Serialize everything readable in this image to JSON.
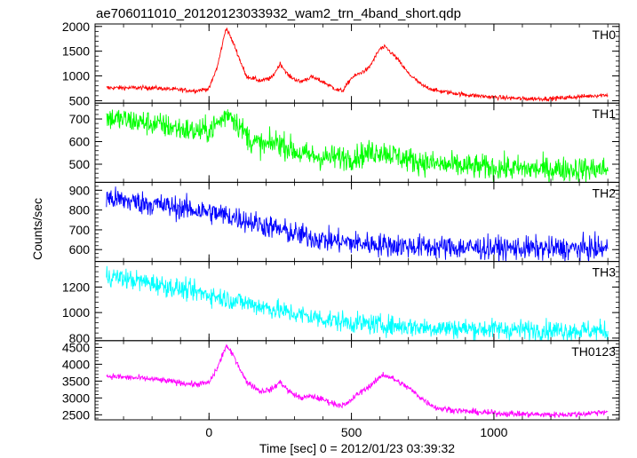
{
  "chart_data": {
    "type": "line",
    "title": "ae706011010_20120123033932_wam2_trn_4band_short.qdp",
    "xlabel": "Time [sec] 0 = 2012/01/23 03:39:32",
    "ylabel": "Counts/sec",
    "xlim": [
      -400,
      1440
    ],
    "xticks": [
      0,
      500,
      1000
    ],
    "panels": [
      {
        "name": "TH0",
        "color": "#ff0000",
        "ylim": [
          450,
          2050
        ],
        "yticks": [
          500,
          1000,
          1500,
          2000
        ],
        "noise": 22,
        "points": [
          [
            -360,
            760
          ],
          [
            -200,
            760
          ],
          [
            -50,
            700
          ],
          [
            0,
            740
          ],
          [
            30,
            1200
          ],
          [
            60,
            1980
          ],
          [
            90,
            1600
          ],
          [
            130,
            1000
          ],
          [
            180,
            900
          ],
          [
            220,
            960
          ],
          [
            250,
            1250
          ],
          [
            280,
            1000
          ],
          [
            320,
            880
          ],
          [
            360,
            980
          ],
          [
            400,
            880
          ],
          [
            450,
            720
          ],
          [
            470,
            700
          ],
          [
            500,
            960
          ],
          [
            560,
            1150
          ],
          [
            600,
            1550
          ],
          [
            620,
            1580
          ],
          [
            660,
            1350
          ],
          [
            700,
            1050
          ],
          [
            750,
            800
          ],
          [
            800,
            700
          ],
          [
            900,
            620
          ],
          [
            1000,
            570
          ],
          [
            1100,
            540
          ],
          [
            1200,
            540
          ],
          [
            1300,
            580
          ],
          [
            1400,
            620
          ]
        ]
      },
      {
        "name": "TH1",
        "color": "#00ff00",
        "ylim": [
          420,
          770
        ],
        "yticks": [
          500,
          600,
          700
        ],
        "noise": 28,
        "points": [
          [
            -360,
            705
          ],
          [
            -200,
            680
          ],
          [
            -50,
            645
          ],
          [
            0,
            650
          ],
          [
            40,
            690
          ],
          [
            70,
            730
          ],
          [
            100,
            680
          ],
          [
            150,
            600
          ],
          [
            200,
            580
          ],
          [
            240,
            600
          ],
          [
            270,
            580
          ],
          [
            320,
            545
          ],
          [
            400,
            530
          ],
          [
            500,
            530
          ],
          [
            550,
            545
          ],
          [
            600,
            560
          ],
          [
            650,
            540
          ],
          [
            700,
            520
          ],
          [
            800,
            500
          ],
          [
            900,
            490
          ],
          [
            1000,
            485
          ],
          [
            1100,
            480
          ],
          [
            1200,
            478
          ],
          [
            1300,
            478
          ],
          [
            1400,
            478
          ]
        ]
      },
      {
        "name": "TH2",
        "color": "#0000ff",
        "ylim": [
          540,
          940
        ],
        "yticks": [
          600,
          700,
          800,
          900
        ],
        "noise": 30,
        "points": [
          [
            -360,
            860
          ],
          [
            -200,
            830
          ],
          [
            0,
            790
          ],
          [
            100,
            760
          ],
          [
            200,
            720
          ],
          [
            300,
            680
          ],
          [
            400,
            650
          ],
          [
            500,
            635
          ],
          [
            600,
            625
          ],
          [
            700,
            618
          ],
          [
            800,
            612
          ],
          [
            1000,
            608
          ],
          [
            1200,
            605
          ],
          [
            1400,
            605
          ]
        ]
      },
      {
        "name": "TH3",
        "color": "#00ffff",
        "ylim": [
          780,
          1400
        ],
        "yticks": [
          800,
          1000,
          1200
        ],
        "noise": 40,
        "points": [
          [
            -360,
            1290
          ],
          [
            -200,
            1230
          ],
          [
            0,
            1140
          ],
          [
            100,
            1090
          ],
          [
            200,
            1040
          ],
          [
            300,
            990
          ],
          [
            400,
            950
          ],
          [
            500,
            920
          ],
          [
            600,
            905
          ],
          [
            700,
            890
          ],
          [
            800,
            880
          ],
          [
            1000,
            870
          ],
          [
            1200,
            862
          ],
          [
            1400,
            858
          ]
        ]
      },
      {
        "name": "TH0123",
        "color": "#ff00ff",
        "ylim": [
          2350,
          4700
        ],
        "yticks": [
          2500,
          3000,
          3500,
          4000,
          4500
        ],
        "noise": 45,
        "points": [
          [
            -360,
            3650
          ],
          [
            -200,
            3560
          ],
          [
            -50,
            3400
          ],
          [
            0,
            3450
          ],
          [
            30,
            3900
          ],
          [
            60,
            4550
          ],
          [
            90,
            4200
          ],
          [
            130,
            3500
          ],
          [
            180,
            3200
          ],
          [
            220,
            3250
          ],
          [
            250,
            3480
          ],
          [
            280,
            3200
          ],
          [
            320,
            3000
          ],
          [
            360,
            3050
          ],
          [
            400,
            2950
          ],
          [
            450,
            2800
          ],
          [
            480,
            2790
          ],
          [
            520,
            3100
          ],
          [
            580,
            3450
          ],
          [
            610,
            3700
          ],
          [
            640,
            3600
          ],
          [
            700,
            3300
          ],
          [
            760,
            2900
          ],
          [
            800,
            2700
          ],
          [
            900,
            2600
          ],
          [
            1000,
            2550
          ],
          [
            1100,
            2520
          ],
          [
            1200,
            2500
          ],
          [
            1300,
            2520
          ],
          [
            1400,
            2600
          ]
        ]
      }
    ]
  }
}
